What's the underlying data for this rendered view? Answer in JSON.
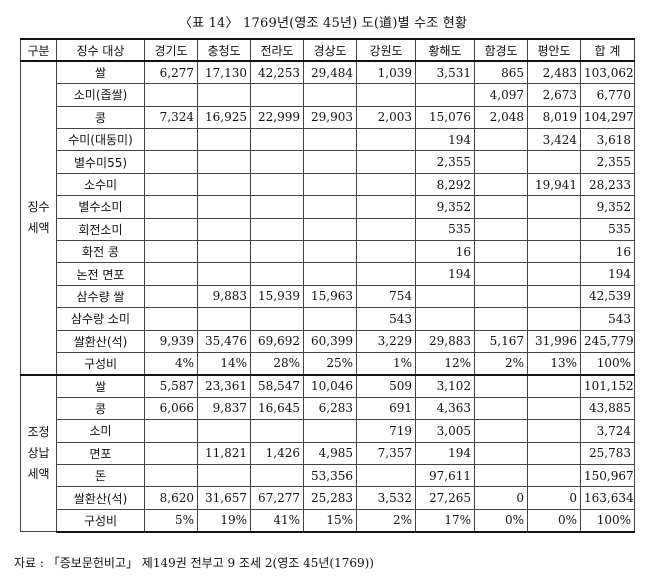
{
  "title": "〈표 14〉 1769년(영조 45년) 도(道)별 수조 현황",
  "headers": [
    "구분",
    "징수 대상",
    "경기도",
    "충청도",
    "전라도",
    "경상도",
    "강원도",
    "황해도",
    "함경도",
    "평안도",
    "합 계"
  ],
  "groups": [
    {
      "name": "징수 세액",
      "rows": [
        {
          "label": "쌀",
          "cells": [
            "6,277",
            "17,130",
            "42,253",
            "29,484",
            "1,039",
            "3,531",
            "865",
            "2,483",
            "103,062"
          ]
        },
        {
          "label": "소미(좁쌀)",
          "cells": [
            "",
            "",
            "",
            "",
            "",
            "",
            "4,097",
            "2,673",
            "6,770"
          ]
        },
        {
          "label": "콩",
          "cells": [
            "7,324",
            "16,925",
            "22,999",
            "29,903",
            "2,003",
            "15,076",
            "2,048",
            "8,019",
            "104,297"
          ]
        },
        {
          "label": "수미(대동미)",
          "cells": [
            "",
            "",
            "",
            "",
            "",
            "194",
            "",
            "3,424",
            "3,618"
          ]
        },
        {
          "label": "별수미55)",
          "cells": [
            "",
            "",
            "",
            "",
            "",
            "2,355",
            "",
            "",
            "2,355"
          ]
        },
        {
          "label": "소수미",
          "cells": [
            "",
            "",
            "",
            "",
            "",
            "8,292",
            "",
            "19,941",
            "28,233"
          ]
        },
        {
          "label": "별수소미",
          "cells": [
            "",
            "",
            "",
            "",
            "",
            "9,352",
            "",
            "",
            "9,352"
          ]
        },
        {
          "label": "회전소미",
          "cells": [
            "",
            "",
            "",
            "",
            "",
            "535",
            "",
            "",
            "535"
          ]
        },
        {
          "label": "화전 콩",
          "cells": [
            "",
            "",
            "",
            "",
            "",
            "16",
            "",
            "",
            "16"
          ]
        },
        {
          "label": "논전 면포",
          "cells": [
            "",
            "",
            "",
            "",
            "",
            "194",
            "",
            "",
            "194"
          ]
        },
        {
          "label": "삼수량 쌀",
          "cells": [
            "",
            "9,883",
            "15,939",
            "15,963",
            "754",
            "",
            "",
            "",
            "42,539"
          ]
        },
        {
          "label": "삼수량 소미",
          "cells": [
            "",
            "",
            "",
            "",
            "543",
            "",
            "",
            "",
            "543"
          ]
        },
        {
          "label": "쌀환산(석)",
          "cells": [
            "9,939",
            "35,476",
            "69,692",
            "60,399",
            "3,229",
            "29,883",
            "5,167",
            "31,996",
            "245,779"
          ]
        },
        {
          "label": "구성비",
          "cells": [
            "4%",
            "14%",
            "28%",
            "25%",
            "1%",
            "12%",
            "2%",
            "13%",
            "100%"
          ]
        }
      ]
    },
    {
      "name": "조정 상납 세액",
      "rows": [
        {
          "label": "쌀",
          "cells": [
            "5,587",
            "23,361",
            "58,547",
            "10,046",
            "509",
            "3,102",
            "",
            "",
            "101,152"
          ]
        },
        {
          "label": "콩",
          "cells": [
            "6,066",
            "9,837",
            "16,645",
            "6,283",
            "691",
            "4,363",
            "",
            "",
            "43,885"
          ]
        },
        {
          "label": "소미",
          "cells": [
            "",
            "",
            "",
            "",
            "719",
            "3,005",
            "",
            "",
            "3,724"
          ]
        },
        {
          "label": "면포",
          "cells": [
            "",
            "11,821",
            "1,426",
            "4,985",
            "7,357",
            "194",
            "",
            "",
            "25,783"
          ]
        },
        {
          "label": "돈",
          "cells": [
            "",
            "",
            "",
            "53,356",
            "",
            "97,611",
            "",
            "",
            "150,967"
          ]
        },
        {
          "label": "쌀환산(석)",
          "cells": [
            "8,620",
            "31,657",
            "67,277",
            "25,283",
            "3,532",
            "27,265",
            "0",
            "0",
            "163,634"
          ]
        },
        {
          "label": "구성비",
          "cells": [
            "5%",
            "19%",
            "41%",
            "15%",
            "2%",
            "17%",
            "0%",
            "0%",
            "100%"
          ]
        }
      ]
    }
  ],
  "source": "자료 : 「증보문헌비고」 제149권 전부고 9 조세 2(영조 45년(1769))"
}
